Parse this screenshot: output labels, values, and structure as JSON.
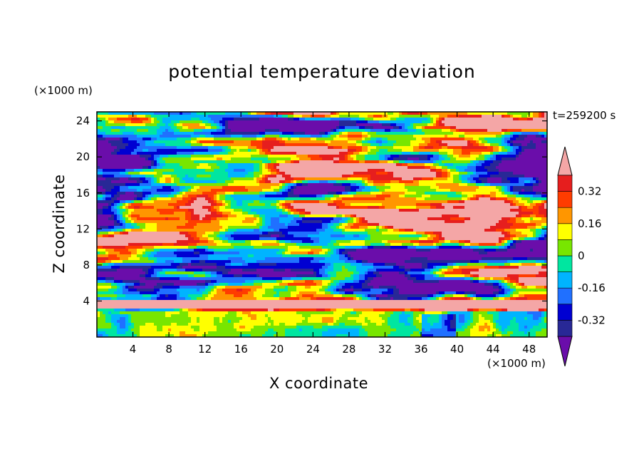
{
  "chart_data": {
    "type": "heatmap",
    "title": "potential temperature deviation",
    "xlabel": "X coordinate",
    "ylabel": "Z coordinate",
    "x_unit": "(×1000 m)",
    "y_unit": "(×1000 m)",
    "time_label": "t=259200 s",
    "xlim": [
      0,
      50
    ],
    "ylim": [
      0,
      25
    ],
    "x_ticks": [
      4,
      8,
      12,
      16,
      20,
      24,
      28,
      32,
      36,
      40,
      44,
      48
    ],
    "y_ticks": [
      4,
      8,
      12,
      16,
      20,
      24
    ],
    "colorbar": {
      "levels": [
        -0.4,
        -0.32,
        -0.24,
        -0.16,
        -0.08,
        0,
        0.08,
        0.16,
        0.24,
        0.32,
        0.4
      ],
      "colors": [
        "#6a0daa",
        "#282896",
        "#0000d2",
        "#2070ff",
        "#00b4ff",
        "#00e6a0",
        "#78e600",
        "#ffff00",
        "#ff9600",
        "#ff3c00",
        "#e61e1e",
        "#f4a6a6"
      ],
      "labels": [
        "0.32",
        "0.16",
        "0",
        "-0.16",
        "-0.32"
      ],
      "label_values": [
        0.32,
        0.16,
        0,
        -0.16,
        -0.32
      ],
      "extend": "both"
    },
    "grid": false
  }
}
